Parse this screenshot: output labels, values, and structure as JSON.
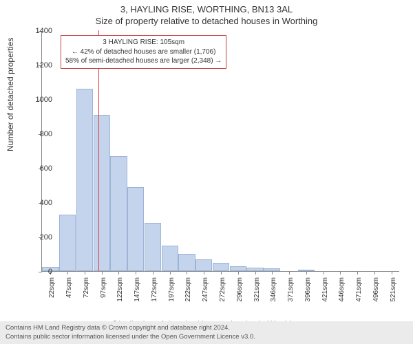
{
  "header": {
    "address": "3, HAYLING RISE, WORTHING, BN13 3AL",
    "subtitle": "Size of property relative to detached houses in Worthing"
  },
  "chart": {
    "type": "histogram",
    "ylim": [
      0,
      1400
    ],
    "ytick_step": 200,
    "yticks": [
      0,
      200,
      400,
      600,
      800,
      1000,
      1200,
      1400
    ],
    "ylabel": "Number of detached properties",
    "xlabel": "Distribution of detached houses by size in Worthing",
    "xticks": [
      "22sqm",
      "47sqm",
      "72sqm",
      "97sqm",
      "122sqm",
      "147sqm",
      "172sqm",
      "197sqm",
      "222sqm",
      "247sqm",
      "272sqm",
      "296sqm",
      "321sqm",
      "346sqm",
      "371sqm",
      "396sqm",
      "421sqm",
      "446sqm",
      "471sqm",
      "496sqm",
      "521sqm"
    ],
    "bar_values": [
      25,
      330,
      1060,
      910,
      670,
      490,
      280,
      150,
      100,
      70,
      50,
      30,
      20,
      15,
      0,
      10,
      0,
      0,
      0,
      0,
      0
    ],
    "bar_color": "#c4d4ed",
    "bar_border": "#9db3d6",
    "background_color": "#ffffff",
    "marker": {
      "position_index": 3.3,
      "color": "#e04040"
    }
  },
  "annotation": {
    "line1": "3 HAYLING RISE: 105sqm",
    "line2": "← 42% of detached houses are smaller (1,706)",
    "line3": "58% of semi-detached houses are larger (2,348) →",
    "border_color": "#c04040"
  },
  "footer": {
    "line1": "Contains HM Land Registry data © Crown copyright and database right 2024.",
    "line2": "Contains public sector information licensed under the Open Government Licence v3.0."
  }
}
